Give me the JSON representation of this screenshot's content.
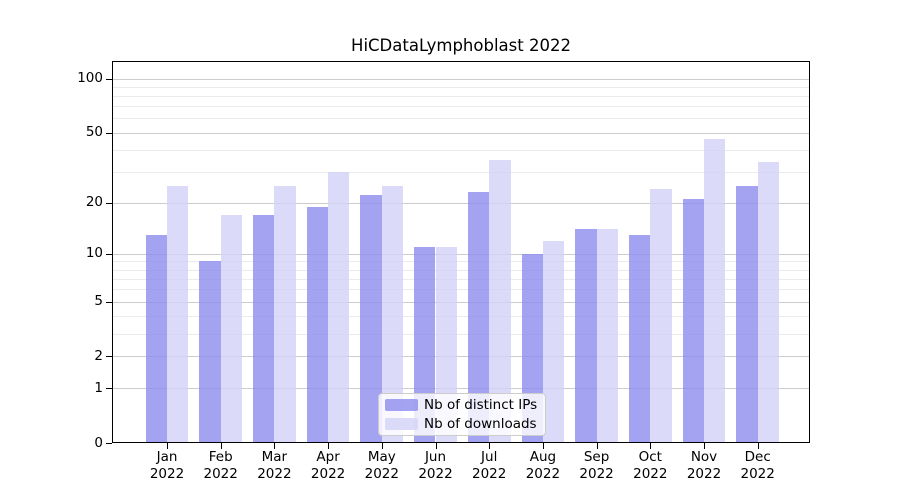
{
  "chart_data": {
    "type": "bar",
    "title": "HiCDataLymphoblast 2022",
    "categories": [
      "Jan",
      "Feb",
      "Mar",
      "Apr",
      "May",
      "Jun",
      "Jul",
      "Aug",
      "Sep",
      "Oct",
      "Nov",
      "Dec"
    ],
    "x_tick_second_line": "2022",
    "series": [
      {
        "name": "Nb of distinct IPs",
        "color": "#8c8cee",
        "alpha": 0.8,
        "values": [
          13,
          9,
          17,
          19,
          22,
          11,
          23,
          10,
          14,
          13,
          21,
          25
        ]
      },
      {
        "name": "Nb of downloads",
        "color": "#d2d2f8",
        "alpha": 0.8,
        "values": [
          25,
          17,
          25,
          30,
          25,
          11,
          35,
          12,
          14,
          24,
          46,
          34
        ]
      }
    ],
    "xlabel": "",
    "ylabel": "",
    "yscale": "log1p",
    "ylim": [
      0,
      125
    ],
    "yticks": [
      0,
      1,
      2,
      5,
      10,
      20,
      50,
      100
    ],
    "ytick_labels": [
      "0",
      "1",
      "2",
      "5",
      "10",
      "20",
      "50",
      "100"
    ],
    "minor_gridline_values": [
      3,
      4,
      6,
      7,
      8,
      9,
      30,
      40,
      60,
      70,
      80,
      90
    ],
    "grid": true,
    "legend_position": "lower center"
  },
  "style_colors": {
    "background": "#ffffff",
    "axis": "#000000",
    "text": "#000000",
    "grid_major": "#cccccc",
    "grid_minor": "#ebebeb",
    "legend_border": "#cccccc"
  }
}
